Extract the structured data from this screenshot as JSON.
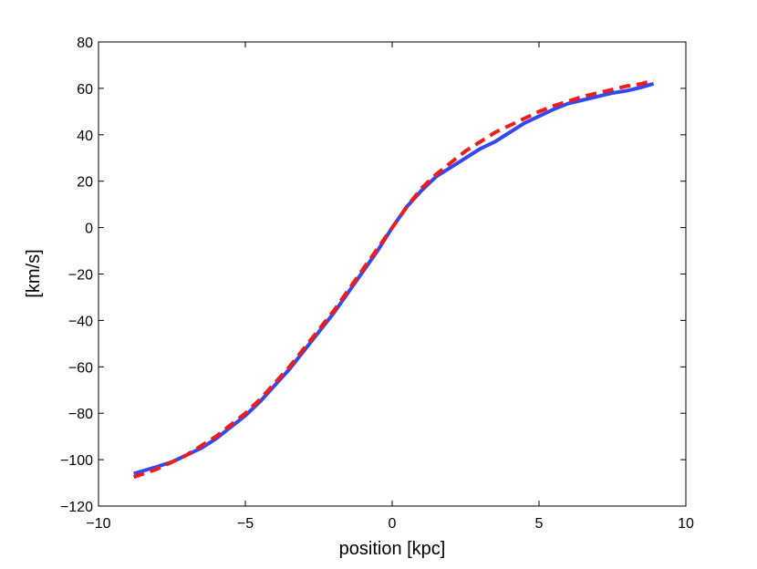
{
  "chart_data": {
    "type": "line",
    "title": "",
    "xlabel": "position [kpc]",
    "ylabel": "[km/s]",
    "xlim": [
      -10,
      10
    ],
    "ylim": [
      -120,
      80
    ],
    "xticks": [
      -10,
      -5,
      0,
      5,
      10
    ],
    "yticks": [
      -120,
      -100,
      -80,
      -60,
      -40,
      -20,
      0,
      20,
      40,
      60,
      80
    ],
    "xtick_labels": [
      "−10",
      "−5",
      "0",
      "5",
      "10"
    ],
    "ytick_labels": [
      "−120",
      "−100",
      "−80",
      "−60",
      "−40",
      "−20",
      "0",
      "20",
      "40",
      "60",
      "80"
    ],
    "grid": false,
    "series": [
      {
        "style": "solid",
        "color": "#3548f0",
        "x": [
          -8.8,
          -8.0,
          -7.5,
          -7.0,
          -6.5,
          -6.0,
          -5.5,
          -5.0,
          -4.5,
          -4.0,
          -3.5,
          -3.0,
          -2.5,
          -2.0,
          -1.5,
          -1.0,
          -0.5,
          0.0,
          0.5,
          1.0,
          1.5,
          2.0,
          2.5,
          3.0,
          3.5,
          4.0,
          4.5,
          5.0,
          5.5,
          6.0,
          6.5,
          7.0,
          7.5,
          8.0,
          8.5,
          8.9
        ],
        "y": [
          -106,
          -103,
          -101,
          -98,
          -95,
          -91,
          -86,
          -81,
          -75,
          -68,
          -61,
          -53,
          -45,
          -37,
          -28,
          -19,
          -10,
          0,
          9,
          16,
          22,
          26,
          30,
          34,
          37,
          41,
          45,
          48,
          51,
          53.5,
          55,
          56.5,
          58,
          59,
          60.5,
          62
        ]
      },
      {
        "style": "dashed",
        "color": "#ef1c1c",
        "x": [
          -8.8,
          -8.0,
          -7.5,
          -7.0,
          -6.5,
          -6.0,
          -5.5,
          -5.0,
          -4.5,
          -4.0,
          -3.5,
          -3.0,
          -2.5,
          -2.0,
          -1.5,
          -1.0,
          -0.5,
          0.0,
          0.5,
          1.0,
          1.5,
          2.0,
          2.5,
          3.0,
          3.5,
          4.0,
          4.5,
          5.0,
          5.5,
          6.0,
          6.5,
          7.0,
          7.5,
          8.0,
          8.5,
          8.9
        ],
        "y": [
          -107.5,
          -104,
          -101,
          -98,
          -94,
          -90,
          -85,
          -80,
          -74,
          -67,
          -60,
          -52,
          -44,
          -36,
          -27,
          -18,
          -9,
          0,
          9,
          17,
          23,
          28,
          33,
          37,
          41,
          44,
          47,
          50,
          52.5,
          54.5,
          56.5,
          58,
          59.5,
          61,
          62,
          63.5
        ]
      }
    ]
  }
}
